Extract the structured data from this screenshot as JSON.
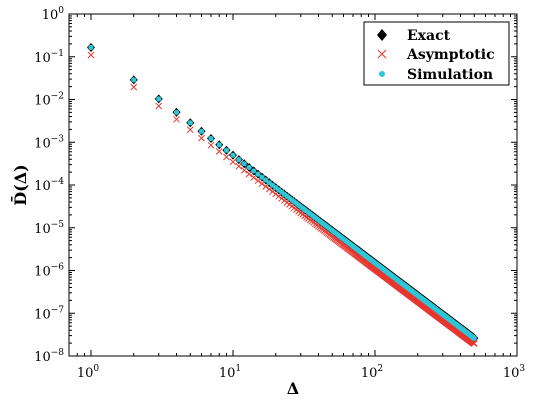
{
  "chart_data": {
    "type": "scatter",
    "xlabel": "Δ",
    "ylabel_main": "D̄",
    "ylabel_arg": "(Δ)",
    "x_scale": "log",
    "y_scale": "log",
    "xlim": [
      0.7,
      1000
    ],
    "ylim": [
      1e-08,
      1
    ],
    "x_ticks": [
      {
        "value": 1,
        "base": "10",
        "exp": "0"
      },
      {
        "value": 10,
        "base": "10",
        "exp": "1"
      },
      {
        "value": 100,
        "base": "10",
        "exp": "2"
      },
      {
        "value": 1000,
        "base": "10",
        "exp": "3"
      }
    ],
    "y_ticks": [
      {
        "value": 1e-08,
        "base": "10",
        "exp": "−8"
      },
      {
        "value": 1e-07,
        "base": "10",
        "exp": "−7"
      },
      {
        "value": 1e-06,
        "base": "10",
        "exp": "−6"
      },
      {
        "value": 1e-05,
        "base": "10",
        "exp": "−5"
      },
      {
        "value": 0.0001,
        "base": "10",
        "exp": "−4"
      },
      {
        "value": 0.001,
        "base": "10",
        "exp": "−3"
      },
      {
        "value": 0.01,
        "base": "10",
        "exp": "−2"
      },
      {
        "value": 0.1,
        "base": "10",
        "exp": "−1"
      },
      {
        "value": 1,
        "base": "10",
        "exp": "0"
      }
    ],
    "x": "integers 1 to 500",
    "series": [
      {
        "name": "Exact",
        "marker": "diamond",
        "color": "#000000",
        "power_law": {
          "coefficient": 0.165,
          "exponent": -2.52
        }
      },
      {
        "name": "Asymptotic",
        "marker": "x",
        "color": "#e8372f",
        "power_law": {
          "coefficient": 0.11,
          "exponent": -2.5
        }
      },
      {
        "name": "Simulation",
        "marker": "dot",
        "color": "#2ec7d6",
        "power_law": {
          "coefficient": 0.165,
          "exponent": -2.52
        }
      }
    ],
    "legend": {
      "position": "top-right",
      "entries": [
        "Exact",
        "Asymptotic",
        "Simulation"
      ]
    },
    "grid": false
  }
}
